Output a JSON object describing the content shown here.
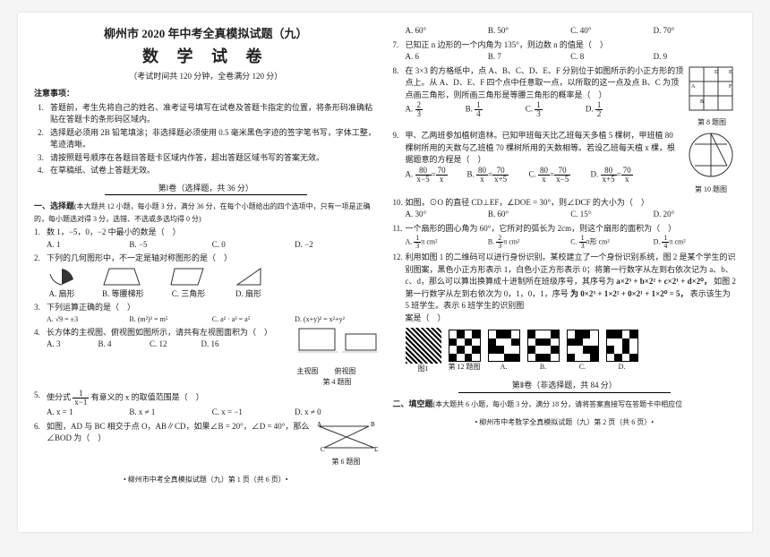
{
  "header": {
    "title1": "柳州市 2020 年中考全真模拟试题（九）",
    "title2": "数 学 试 卷",
    "subtitle": "（考试时间共 120 分钟，全卷满分 120 分）"
  },
  "notices": {
    "head": "注意事项：",
    "items": [
      "答题前，考生先将自己的姓名、准考证号填写在试卷及答题卡指定的位置，将条形码准确粘贴在答题卡的条形码区域内。",
      "选择题必须用 2B 铅笔填涂；非选择题必须使用 0.5 毫米黑色字迹的签字笔书写，字体工整，笔迹清晰。",
      "请按照题号顺序在各题目答题卡区域内作答，超出答题区域书写的答案无效。",
      "在草稿纸、试卷上答题无效。"
    ]
  },
  "part1": {
    "title": "第Ⅰ卷（选择题，共 36 分）"
  },
  "section1": {
    "head": "一、选择题",
    "desc": "(本大题共 12 小题，每小题 3 分，满分 36 分，在每个小题给出的四个选项中，只有一项是正确的，每小题选对得 3 分，选错、不选或多选均得 0 分)"
  },
  "q1": {
    "text": "数 1，−5，0，−2 中最小的数是（　）",
    "opts": [
      "A. 1",
      "B. −5",
      "C. 0",
      "D. −2"
    ]
  },
  "q2": {
    "text": "下列的几何图形中，不一定是轴对称图形的是（　）",
    "shapes": [
      "A. 扇形",
      "B. 等腰梯形",
      "C. 三角形",
      "D. 扇形"
    ]
  },
  "q3": {
    "text": "下列运算正确的是（　）",
    "opts": [
      "A. √9 = ±3",
      "B. (m²)³ = m⁵",
      "C. a² · a³ = a⁵",
      "D. (x+y)² = x²+y²"
    ]
  },
  "q4": {
    "text": "长方体的主视图、俯视图如图所示，请共有左视图面积为（　）",
    "opts": [
      "A. 3",
      "B. 4",
      "C. 12",
      "D. 16"
    ],
    "fig": "第 4 题图",
    "figLabels": [
      "主视图",
      "俯视图"
    ]
  },
  "q5": {
    "text_a": "使分式",
    "text_b": "有意义的 x 的取值范围是（　）",
    "frac": {
      "n": "1",
      "d": "x−1"
    },
    "opts": [
      "A. x = 1",
      "B. x ≠ 1",
      "C. x = −1",
      "D. x ≠ 0"
    ]
  },
  "q6": {
    "text": "如图，AD 与 BC 相交于点 O，AB∥CD，如果∠B = 20°，∠D = 40°，那么∠BOD 为（　）",
    "fig": "第 6 题图"
  },
  "q6opts": [
    "A. 60°",
    "B. 50°",
    "C. 40°",
    "D. 70°"
  ],
  "q7": {
    "text": "已知正 n 边形的一个内角为 135°，则边数 n 的值是（　）",
    "opts": [
      "A. 6",
      "B. 7",
      "C. 8",
      "D. 9"
    ]
  },
  "q8": {
    "text": "在 3×3 的方格纸中，点 A、B、C、D、E、F 分别位于如图所示的小正方形的顶点上。从 A、D、E、F 四个点中任意取一点，以所取的这一点及点 B、C 为顶点画三角形，则所画三角形是等腰三角形的概率是（　）",
    "fig": "第 8 题图",
    "opts": [
      {
        "label": "A.",
        "n": "2",
        "d": "3"
      },
      {
        "label": "B.",
        "n": "1",
        "d": "4"
      },
      {
        "label": "C.",
        "n": "1",
        "d": "3"
      },
      {
        "label": "D.",
        "n": "1",
        "d": "2"
      }
    ]
  },
  "q9": {
    "text": "甲、乙两班参加植树造林。已知甲班每天比乙班每天多植 5 棵树，甲班植 80 棵树所用的天数与乙班植 70 棵树所用的天数相等。若设乙班每天植 x 棵，根据题意的方程是（　）",
    "opts": [
      {
        "label": "A.",
        "ln": "80",
        "ld": "x−5",
        "rn": "70",
        "rd": "x"
      },
      {
        "label": "B.",
        "ln": "80",
        "ld": "x",
        "rn": "70",
        "rd": "x+5"
      },
      {
        "label": "C.",
        "ln": "80",
        "ld": "x",
        "rn": "70",
        "rd": "x−5"
      },
      {
        "label": "D.",
        "ln": "80",
        "ld": "x+5",
        "rn": "70",
        "rd": "x"
      }
    ]
  },
  "q10": {
    "text": "如图，⊙O 的直径 CD⊥EF，∠DOE = 30°，则∠DCF 的大小为（　）",
    "fig": "第 10 题图",
    "opts": [
      "A. 30°",
      "B. 60°",
      "C. 15°",
      "D. 20°"
    ]
  },
  "q11": {
    "text": "一个扇形的圆心角为 60°，它所对的弧长为 2cm，则这个扇形的面积为（　）",
    "opts": [
      {
        "label": "A.",
        "n": "1",
        "d": "3",
        "suf": "π cm²"
      },
      {
        "label": "B.",
        "n": "2",
        "d": "3",
        "suf": "π cm²"
      },
      {
        "label": "C.",
        "n": "1",
        "d": "3",
        "suf": "π形 cm²"
      },
      {
        "label": "D.",
        "n": "1",
        "d": "4",
        "suf": "π cm²"
      }
    ]
  },
  "q12": {
    "text1": "利用如图 1 的二维码可以进行身份识别。某校建立了一个身份识别系统，图 2 是某个学生的识别图案，黑色小正方形表示 1，白色小正方形表示 0；将第一行数字从左到右依次记为 a、b、c、d，那么可以算出换算成十进制所在班级序号，其序号为",
    "formula1": "a×2³ + b×2² + c×2¹ + d×2⁰，",
    "text2": "如图 2 第一行数字从左到右依次为 0，1，0，1，序号",
    "formula2": "为 0×2³ + 1×2² + 0×2¹ + 1×2⁰ = 5，",
    "text3": "表示该生为 5 班学生。表示 6 班学生的识别图",
    "text4": "案是（　）",
    "fig": "第 12 题图",
    "opts": [
      "A.",
      "B.",
      "C.",
      "D."
    ]
  },
  "part2": {
    "title": "第Ⅱ卷（非选择题，共 84 分）"
  },
  "section2": {
    "head": "二、填空题",
    "desc": "(本大题共 6 小题，每小题 3 分，满分 18 分，请将答案直接写在答题卡中相应位"
  },
  "footers": {
    "left": "• 柳州市中考全真模拟试题（九）第 1 页（共 6 页）•",
    "right": "• 柳州市中考数学全真模拟试题（九）第 2 页（共 6 页）•"
  },
  "patterns": {
    "p1": [
      0,
      1,
      0,
      1,
      1,
      0,
      1,
      0,
      0,
      1,
      0,
      1,
      1,
      0,
      1,
      0
    ],
    "a": [
      0,
      1,
      1,
      0,
      1,
      0,
      0,
      1,
      1,
      1,
      0,
      0,
      0,
      0,
      1,
      1
    ],
    "b": [
      1,
      0,
      0,
      1,
      0,
      1,
      1,
      0,
      1,
      0,
      0,
      1,
      0,
      1,
      1,
      0
    ],
    "c": [
      0,
      1,
      1,
      0,
      1,
      1,
      0,
      0,
      0,
      0,
      1,
      1,
      1,
      0,
      0,
      1
    ],
    "d": [
      1,
      1,
      0,
      1,
      0,
      0,
      1,
      0,
      1,
      0,
      1,
      0,
      0,
      1,
      0,
      1
    ]
  }
}
